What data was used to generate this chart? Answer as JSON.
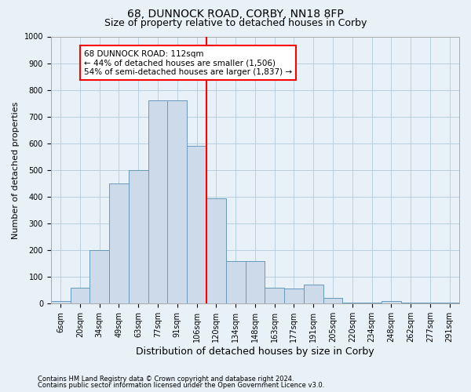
{
  "title": "68, DUNNOCK ROAD, CORBY, NN18 8FP",
  "subtitle": "Size of property relative to detached houses in Corby",
  "xlabel": "Distribution of detached houses by size in Corby",
  "ylabel": "Number of detached properties",
  "footnote1": "Contains HM Land Registry data © Crown copyright and database right 2024.",
  "footnote2": "Contains public sector information licensed under the Open Government Licence v3.0.",
  "categories": [
    "6sqm",
    "20sqm",
    "34sqm",
    "49sqm",
    "63sqm",
    "77sqm",
    "91sqm",
    "106sqm",
    "120sqm",
    "134sqm",
    "148sqm",
    "163sqm",
    "177sqm",
    "191sqm",
    "205sqm",
    "220sqm",
    "234sqm",
    "248sqm",
    "262sqm",
    "277sqm",
    "291sqm"
  ],
  "values": [
    10,
    60,
    200,
    450,
    500,
    760,
    760,
    590,
    395,
    160,
    160,
    60,
    55,
    70,
    20,
    5,
    5,
    10,
    5,
    5,
    5
  ],
  "bar_color": "#ccdaea",
  "bar_edge_color": "#6699bb",
  "vline_color": "red",
  "vline_pos": 7.5,
  "annotation_text": "68 DUNNOCK ROAD: 112sqm\n← 44% of detached houses are smaller (1,506)\n54% of semi-detached houses are larger (1,837) →",
  "annotation_box_color": "white",
  "annotation_box_edge": "red",
  "ylim": [
    0,
    1000
  ],
  "yticks": [
    0,
    100,
    200,
    300,
    400,
    500,
    600,
    700,
    800,
    900,
    1000
  ],
  "grid_color": "#b8cfe0",
  "background_color": "#e8f0f8",
  "title_fontsize": 10,
  "subtitle_fontsize": 9,
  "ylabel_fontsize": 8,
  "xlabel_fontsize": 9,
  "tick_fontsize": 7,
  "annotation_fontsize": 7.5,
  "footnote_fontsize": 6
}
